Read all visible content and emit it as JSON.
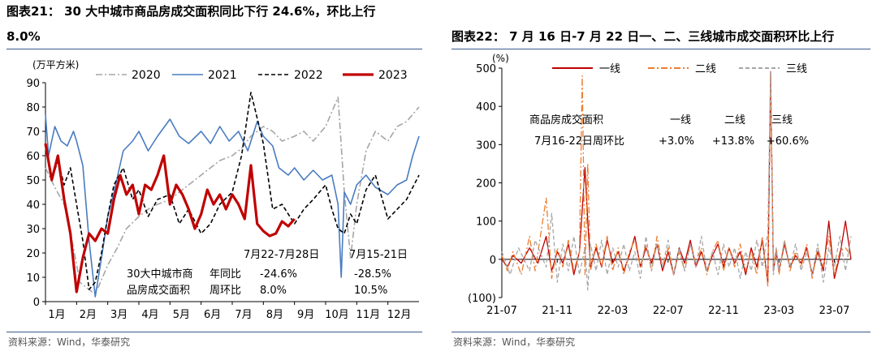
{
  "left": {
    "title_line1": "图表21： 30 大中城市商品房成交面积同比下行 24.6%，环比上行",
    "title_line2": "8.0%",
    "source": "资料来源：Wind，华泰研究"
  },
  "right": {
    "title": "图表22： 7 月 16 日-7 月 22 日一、二、三线城市成交面积环比上行",
    "source": "资料来源：Wind，华泰研究"
  },
  "chart_data": [
    {
      "type": "line",
      "unit_label": "(万平方米)",
      "ylim": [
        0,
        90
      ],
      "yticks": [
        0,
        10,
        20,
        30,
        40,
        50,
        60,
        70,
        80,
        90
      ],
      "xtick_labels": [
        "1月",
        "2月",
        "3月",
        "4月",
        "5月",
        "6月",
        "7月",
        "8月",
        "9月",
        "10月",
        "11月",
        "12月"
      ],
      "grid": false,
      "legend": "top",
      "series": [
        {
          "name": "2020",
          "color": "#a6a6a6",
          "dash": "dashdot",
          "x": [
            0.0,
            0.3,
            0.6,
            0.9,
            1.1,
            1.3,
            1.5,
            1.7,
            2.0,
            2.3,
            2.6,
            3.0,
            3.3,
            3.6,
            4.0,
            4.3,
            4.6,
            5.0,
            5.3,
            5.6,
            6.0,
            6.3,
            6.6,
            7.0,
            7.3,
            7.6,
            8.0,
            8.3,
            8.6,
            9.0,
            9.2,
            9.4,
            9.6,
            9.8,
            10.0,
            10.3,
            10.6,
            11.0,
            11.3,
            11.6,
            12.0
          ],
          "y": [
            55,
            47,
            40,
            22,
            8,
            6,
            4,
            6,
            15,
            22,
            30,
            35,
            38,
            40,
            42,
            45,
            48,
            52,
            55,
            58,
            60,
            63,
            68,
            72,
            70,
            66,
            68,
            70,
            66,
            72,
            78,
            84,
            45,
            18,
            40,
            62,
            70,
            66,
            72,
            74,
            80
          ]
        },
        {
          "name": "2021",
          "color": "#4a7cc1",
          "dash": "solid",
          "x": [
            0.0,
            0.1,
            0.3,
            0.5,
            0.7,
            0.9,
            1.0,
            1.2,
            1.4,
            1.6,
            1.8,
            2.0,
            2.2,
            2.5,
            2.8,
            3.0,
            3.3,
            3.6,
            4.0,
            4.3,
            4.6,
            5.0,
            5.3,
            5.6,
            5.9,
            6.2,
            6.5,
            6.8,
            7.0,
            7.3,
            7.5,
            7.8,
            8.0,
            8.3,
            8.6,
            8.9,
            9.2,
            9.4,
            9.5,
            9.6,
            9.8,
            10.0,
            10.3,
            10.6,
            11.0,
            11.3,
            11.6,
            11.8,
            12.0
          ],
          "y": [
            77,
            60,
            72,
            66,
            64,
            70,
            66,
            56,
            25,
            2,
            18,
            35,
            45,
            62,
            66,
            70,
            62,
            68,
            75,
            68,
            65,
            70,
            65,
            72,
            66,
            70,
            62,
            74,
            68,
            64,
            55,
            52,
            55,
            50,
            54,
            50,
            52,
            40,
            10,
            45,
            40,
            48,
            52,
            47,
            44,
            48,
            50,
            60,
            68
          ]
        },
        {
          "name": "2022",
          "color": "#000000",
          "dash": "dashed",
          "x": [
            0.0,
            0.2,
            0.4,
            0.6,
            0.8,
            1.0,
            1.2,
            1.4,
            1.6,
            1.8,
            2.0,
            2.2,
            2.5,
            2.8,
            3.0,
            3.3,
            3.6,
            4.0,
            4.3,
            4.6,
            5.0,
            5.3,
            5.6,
            6.0,
            6.3,
            6.6,
            7.0,
            7.3,
            7.6,
            8.0,
            8.3,
            8.6,
            9.0,
            9.2,
            9.4,
            9.6,
            9.8,
            10.0,
            10.3,
            10.6,
            11.0,
            11.3,
            11.6,
            12.0
          ],
          "y": [
            64,
            50,
            58,
            48,
            55,
            40,
            25,
            5,
            8,
            20,
            35,
            48,
            55,
            42,
            46,
            35,
            42,
            44,
            32,
            38,
            28,
            32,
            40,
            45,
            60,
            86,
            65,
            38,
            40,
            32,
            38,
            42,
            48,
            38,
            30,
            28,
            36,
            32,
            46,
            52,
            34,
            38,
            42,
            52
          ]
        },
        {
          "name": "2023",
          "color": "#c00000",
          "dash": "solid",
          "x": [
            0.0,
            0.2,
            0.4,
            0.6,
            0.8,
            1.0,
            1.2,
            1.4,
            1.6,
            1.8,
            2.0,
            2.2,
            2.4,
            2.6,
            2.8,
            3.0,
            3.2,
            3.4,
            3.6,
            3.8,
            4.0,
            4.2,
            4.4,
            4.6,
            4.8,
            5.0,
            5.2,
            5.4,
            5.6,
            5.8,
            6.0,
            6.2,
            6.4,
            6.6,
            6.8,
            7.0,
            7.2,
            7.4,
            7.6,
            7.8,
            8.0
          ],
          "y": [
            65,
            50,
            60,
            42,
            28,
            4,
            18,
            28,
            25,
            30,
            28,
            42,
            52,
            44,
            48,
            36,
            48,
            46,
            52,
            60,
            40,
            48,
            44,
            38,
            30,
            36,
            46,
            40,
            44,
            38,
            44,
            40,
            34,
            56,
            32,
            29,
            27,
            28,
            33,
            31,
            34
          ]
        }
      ],
      "annotations": {
        "period_a": "7月22-7月28日",
        "period_b": "7月15-21日",
        "metric_line1_left": "30大中城市商",
        "metric_line2_left": "品房成交面积",
        "yoy_label": "年同比",
        "mom_label": "周环比",
        "yoy_a": "-24.6%",
        "mom_a": "8.0%",
        "yoy_b": "-28.5%",
        "mom_b": "10.5%"
      }
    },
    {
      "type": "line",
      "unit_label": "(%)",
      "ylim": [
        -100,
        500
      ],
      "yticks": [
        -100,
        0,
        100,
        200,
        300,
        400,
        500
      ],
      "ytick_labels": [
        "(100)",
        "0",
        "100",
        "200",
        "300",
        "400",
        "500"
      ],
      "xtick_labels": [
        "21-07",
        "21-11",
        "22-03",
        "22-07",
        "22-11",
        "23-03",
        "23-07"
      ],
      "grid": false,
      "legend": "top",
      "series": [
        {
          "name": "一线",
          "color": "#c00000",
          "dash": "solid",
          "x": [
            0.0,
            0.1,
            0.2,
            0.35,
            0.5,
            0.65,
            0.8,
            0.9,
            1.0,
            1.1,
            1.2,
            1.3,
            1.4,
            1.5,
            1.55,
            1.6,
            1.7,
            1.8,
            1.9,
            2.0,
            2.1,
            2.2,
            2.3,
            2.4,
            2.5,
            2.6,
            2.7,
            2.8,
            2.9,
            3.0,
            3.1,
            3.2,
            3.3,
            3.4,
            3.5,
            3.6,
            3.7,
            3.8,
            3.9,
            4.0,
            4.1,
            4.2,
            4.3,
            4.4,
            4.5,
            4.6,
            4.7,
            4.8,
            4.85,
            4.9,
            4.95,
            5.0,
            5.1,
            5.2,
            5.3,
            5.4,
            5.5,
            5.6,
            5.7,
            5.8,
            5.9,
            6.0,
            6.1,
            6.2,
            6.3
          ],
          "y": [
            0,
            -20,
            10,
            -10,
            30,
            -10,
            60,
            -30,
            20,
            -10,
            40,
            -40,
            20,
            240,
            100,
            -20,
            30,
            -20,
            50,
            -10,
            20,
            -30,
            10,
            60,
            -20,
            30,
            -10,
            40,
            -30,
            20,
            -40,
            30,
            -10,
            50,
            -20,
            20,
            -30,
            10,
            40,
            -20,
            30,
            -10,
            20,
            -40,
            30,
            -20,
            50,
            -60,
            490,
            -30,
            20,
            -30,
            40,
            -20,
            10,
            -10,
            30,
            -40,
            20,
            -30,
            100,
            -50,
            10,
            100,
            0
          ]
        },
        {
          "name": "二线",
          "color": "#ed7d31",
          "dash": "dashdot",
          "x": [
            0.0,
            0.1,
            0.2,
            0.35,
            0.5,
            0.6,
            0.8,
            0.9,
            1.0,
            1.1,
            1.2,
            1.3,
            1.4,
            1.45,
            1.5,
            1.55,
            1.6,
            1.7,
            1.8,
            1.9,
            2.0,
            2.1,
            2.2,
            2.3,
            2.4,
            2.5,
            2.6,
            2.7,
            2.8,
            2.9,
            3.0,
            3.1,
            3.2,
            3.3,
            3.4,
            3.5,
            3.6,
            3.7,
            3.8,
            3.9,
            4.0,
            4.1,
            4.2,
            4.3,
            4.4,
            4.5,
            4.6,
            4.7,
            4.8,
            4.85,
            4.9,
            4.95,
            5.0,
            5.1,
            5.2,
            5.3,
            5.4,
            5.5,
            5.6,
            5.7,
            5.8,
            5.9,
            6.0,
            6.1,
            6.2,
            6.3
          ],
          "y": [
            10,
            -30,
            20,
            -40,
            60,
            -30,
            160,
            -50,
            30,
            -20,
            50,
            -30,
            20,
            480,
            -40,
            250,
            -30,
            40,
            -20,
            60,
            -30,
            30,
            -40,
            20,
            50,
            -20,
            40,
            -30,
            60,
            -20,
            30,
            -40,
            20,
            -30,
            40,
            -10,
            30,
            -40,
            20,
            50,
            -30,
            30,
            -20,
            40,
            -30,
            20,
            -40,
            60,
            -70,
            480,
            -20,
            30,
            -40,
            50,
            -30,
            20,
            -20,
            40,
            -50,
            30,
            -20,
            60,
            -40,
            20,
            30,
            10
          ]
        },
        {
          "name": "三线",
          "color": "#a6a6a6",
          "dash": "dashed",
          "x": [
            0.0,
            0.15,
            0.3,
            0.5,
            0.6,
            0.8,
            0.9,
            1.0,
            1.1,
            1.2,
            1.3,
            1.4,
            1.5,
            1.55,
            1.6,
            1.7,
            1.8,
            1.9,
            2.0,
            2.1,
            2.2,
            2.3,
            2.4,
            2.5,
            2.6,
            2.7,
            2.8,
            2.9,
            3.0,
            3.1,
            3.2,
            3.3,
            3.4,
            3.5,
            3.6,
            3.7,
            3.8,
            3.9,
            4.0,
            4.1,
            4.2,
            4.3,
            4.4,
            4.5,
            4.6,
            4.7,
            4.8,
            4.85,
            4.9,
            4.95,
            5.0,
            5.1,
            5.2,
            5.3,
            5.4,
            5.5,
            5.6,
            5.7,
            5.8,
            5.9,
            6.0,
            6.1,
            6.2,
            6.3
          ],
          "y": [
            20,
            -40,
            30,
            -30,
            50,
            -20,
            120,
            -60,
            40,
            -30,
            60,
            -40,
            30,
            -80,
            40,
            -30,
            50,
            -40,
            30,
            -20,
            40,
            -30,
            20,
            -50,
            60,
            -30,
            40,
            -20,
            50,
            -40,
            30,
            -30,
            40,
            -20,
            60,
            -30,
            20,
            -40,
            40,
            -20,
            30,
            -50,
            20,
            -30,
            50,
            -20,
            70,
            490,
            -40,
            30,
            -30,
            50,
            -20,
            40,
            -30,
            20,
            -40,
            40,
            -60,
            30,
            -20,
            60,
            -30,
            60
          ]
        }
      ],
      "annotations": {
        "row_header": "商品房成交面积",
        "row_label": "7月16-22日周环比",
        "col1": "一线",
        "col2": "二线",
        "col3": "三线",
        "val1": "+3.0%",
        "val2": "+13.8%",
        "val3": "+60.6%"
      }
    }
  ]
}
